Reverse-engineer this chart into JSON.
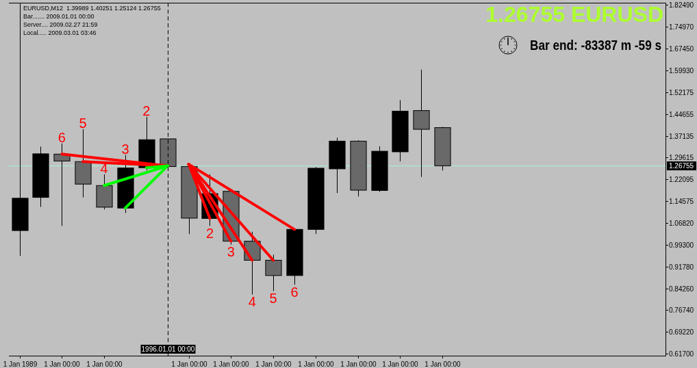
{
  "chart_data": {
    "type": "candlestick",
    "title": "EURUSD,M12  1.39989 1.40251 1.25124 1.26755",
    "annotations": [
      "Bar....... 2009.01.01 00:00",
      "Server.... 2009.02.27 21:59",
      "Local..... 2009.03.01 03:46",
      "1.26755 EURUSD",
      "Bar end: -83387 m -59 s",
      {
        "text": "6",
        "x": "1991",
        "y": 1.345
      },
      {
        "text": "5",
        "x": "1992",
        "y": 1.395
      },
      {
        "text": "4",
        "x": "1993",
        "y": 1.238
      },
      {
        "text": "3",
        "x": "1994",
        "y": 1.305
      },
      {
        "text": "2",
        "x": "1995",
        "y": 1.438
      },
      {
        "text": "2",
        "x": "1998",
        "y": 1.059
      },
      {
        "text": "3",
        "x": "1999",
        "y": 0.994
      },
      {
        "text": "4",
        "x": "2000",
        "y": 0.821
      },
      {
        "text": "5",
        "x": "2001",
        "y": 0.833
      },
      {
        "text": "6",
        "x": "2002",
        "y": 0.855
      }
    ],
    "x": [
      "1989",
      "1990",
      "1991",
      "1992",
      "1993",
      "1994",
      "1995",
      "1996",
      "1997",
      "1998",
      "1999",
      "2000",
      "2001",
      "2002",
      "2003",
      "2004",
      "2005",
      "2006",
      "2007",
      "2008",
      "2009"
    ],
    "ohlc": [
      [
        1.043,
        1.83,
        0.955,
        1.155
      ],
      [
        1.158,
        1.334,
        1.125,
        1.309
      ],
      [
        1.308,
        1.345,
        1.059,
        1.284
      ],
      [
        1.282,
        1.395,
        1.158,
        1.204
      ],
      [
        1.199,
        1.238,
        1.116,
        1.124
      ],
      [
        1.121,
        1.305,
        1.104,
        1.26
      ],
      [
        1.261,
        1.438,
        1.252,
        1.358
      ],
      [
        1.361,
        1.361,
        1.265,
        1.265
      ],
      [
        1.265,
        1.265,
        1.031,
        1.086
      ],
      [
        1.085,
        1.238,
        1.059,
        1.171
      ],
      [
        1.179,
        1.181,
        0.994,
        1.006
      ],
      [
        1.006,
        1.039,
        0.821,
        0.94
      ],
      [
        0.94,
        0.959,
        0.833,
        0.887
      ],
      [
        0.887,
        1.048,
        0.855,
        1.047
      ],
      [
        1.047,
        1.263,
        1.031,
        1.259
      ],
      [
        1.257,
        1.365,
        1.173,
        1.353
      ],
      [
        1.353,
        1.356,
        1.161,
        1.183
      ],
      [
        1.182,
        1.335,
        1.177,
        1.318
      ],
      [
        1.316,
        1.495,
        1.283,
        1.457
      ],
      [
        1.459,
        1.601,
        1.229,
        1.394
      ],
      [
        1.39989,
        1.40251,
        1.25124,
        1.26755
      ]
    ],
    "colors": [
      "#000000",
      "#000000",
      "#696969",
      "#696969",
      "#696969",
      "#000000",
      "#000000",
      "#696969",
      "#696969",
      "#000000",
      "#696969",
      "#696969",
      "#696969",
      "#000000",
      "#000000",
      "#000000",
      "#696969",
      "#000000",
      "#000000",
      "#696969",
      "#696969"
    ],
    "series": [
      {
        "type": "line",
        "color": "#ff0000",
        "x": [
          "1996",
          "1991"
        ],
        "values": [
          1.267,
          1.308
        ]
      },
      {
        "type": "line",
        "color": "#ff0000",
        "x": [
          "1996",
          "1992"
        ],
        "values": [
          1.267,
          1.282
        ]
      },
      {
        "type": "line",
        "color": "#00ff00",
        "x": [
          "1996",
          "1993"
        ],
        "values": [
          1.267,
          1.199
        ]
      },
      {
        "type": "line",
        "color": "#00ff00",
        "x": [
          "1996",
          "1994"
        ],
        "values": [
          1.267,
          1.121
        ]
      },
      {
        "type": "line",
        "color": "#00ff00",
        "x": [
          "1996",
          "1995"
        ],
        "values": [
          1.267,
          1.261
        ]
      },
      {
        "type": "line",
        "color": "#ff0000",
        "x": [
          "1997",
          "1998"
        ],
        "values": [
          1.273,
          1.085
        ]
      },
      {
        "type": "line",
        "color": "#ff0000",
        "x": [
          "1997",
          "1999"
        ],
        "values": [
          1.273,
          1.006
        ]
      },
      {
        "type": "line",
        "color": "#ff0000",
        "x": [
          "1997",
          "2000"
        ],
        "values": [
          1.273,
          0.94
        ]
      },
      {
        "type": "line",
        "color": "#ff0000",
        "x": [
          "1997",
          "2001"
        ],
        "values": [
          1.273,
          0.94
        ]
      },
      {
        "type": "line",
        "color": "#ff0000",
        "x": [
          "1997",
          "2002"
        ],
        "values": [
          1.273,
          1.047
        ]
      }
    ],
    "xlim": [
      "1988-07-01",
      "2019-07-21"
    ],
    "xticks": [
      {
        "value": "1989",
        "label": "1 Jan 1989"
      },
      {
        "value": "1991",
        "label": "1 Jan 00:00"
      },
      {
        "value": "1993",
        "label": "1 Jan 00:00"
      },
      {
        "value": "1997",
        "label": "1 Jan 00:00"
      },
      {
        "value": "1999",
        "label": "1 Jan 00:00"
      },
      {
        "value": "2001",
        "label": "1 Jan 00:00"
      },
      {
        "value": "2003",
        "label": "1 Jan 00:00"
      },
      {
        "value": "2005",
        "label": "1 Jan 00:00"
      },
      {
        "value": "2007",
        "label": "1 Jan 00:00"
      },
      {
        "value": "2009",
        "label": "1 Jan 00:00"
      }
    ],
    "ylim": [
      0.609,
      1.833
    ],
    "yticks": [
      {
        "value": 1.8249,
        "label": "1.82490"
      },
      {
        "value": 1.7497,
        "label": "1.74970"
      },
      {
        "value": 1.6745,
        "label": "1.67450"
      },
      {
        "value": 1.5993,
        "label": "1.59930"
      },
      {
        "value": 1.52175,
        "label": "1.52175"
      },
      {
        "value": 1.44655,
        "label": "1.44655"
      },
      {
        "value": 1.37135,
        "label": "1.37135"
      },
      {
        "value": 1.29615,
        "label": "1.29615"
      },
      {
        "value": 1.22095,
        "label": "1.22095"
      },
      {
        "value": 1.14575,
        "label": "1.14575"
      },
      {
        "value": 1.0682,
        "label": "1.06820"
      },
      {
        "value": 0.993,
        "label": "0.99300"
      },
      {
        "value": 0.9178,
        "label": "0.91780"
      },
      {
        "value": 0.8426,
        "label": "0.84260"
      },
      {
        "value": 0.7674,
        "label": "0.76740"
      },
      {
        "value": 0.6922,
        "label": "0.69220"
      },
      {
        "value": 0.617,
        "label": "0.61700"
      }
    ],
    "ref_lines": [
      {
        "axis": "y",
        "value": 1.26755,
        "label": "1.26755",
        "color": "#a0f5d5"
      },
      {
        "axis": "x",
        "value": "1996",
        "label": "1996.01.01 00:00",
        "color": "#000000",
        "line_style": "dashed"
      }
    ]
  }
}
